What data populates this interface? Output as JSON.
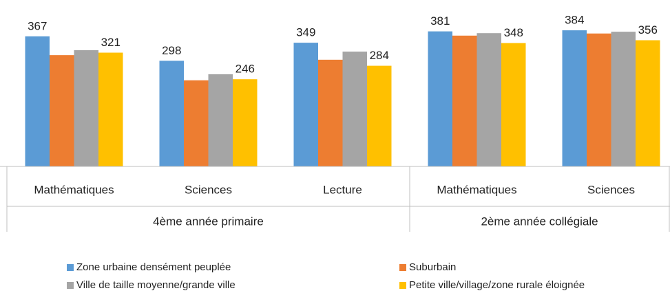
{
  "chart_data": {
    "type": "bar",
    "categories": [
      "Mathématiques",
      "Sciences",
      "Lecture",
      "Mathématiques",
      "Sciences"
    ],
    "groups": [
      {
        "label": "4ème année primaire",
        "count": 3
      },
      {
        "label": "2ème année collégiale",
        "count": 2
      }
    ],
    "series": [
      {
        "name": "Zone urbaine densément peuplée",
        "color": "#5b9bd5",
        "values": [
          367,
          298,
          349,
          381,
          384
        ],
        "data_labels": true
      },
      {
        "name": "Suburbain",
        "color": "#ed7d31",
        "values": [
          314,
          243,
          301,
          369,
          375
        ]
      },
      {
        "name": "Ville de taille moyenne/grande ville",
        "color": "#a5a5a5",
        "values": [
          328,
          260,
          324,
          376,
          380
        ]
      },
      {
        "name": "Petite ville/village/zone rurale éloignée",
        "color": "#ffc000",
        "values": [
          321,
          246,
          284,
          348,
          356
        ],
        "data_labels": true
      }
    ],
    "ylim": [
      0,
      400
    ]
  }
}
